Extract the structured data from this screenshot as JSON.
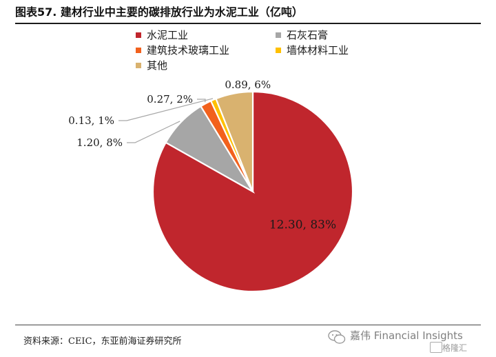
{
  "header": {
    "title": "图表57.  建材行业中主要的碳排放行业为水泥工业（亿吨）"
  },
  "chart_data": {
    "type": "pie",
    "categories": [
      "水泥工业",
      "石灰石膏",
      "建筑技术玻璃工业",
      "墙体材料工业",
      "其他"
    ],
    "values": [
      12.3,
      1.2,
      0.27,
      0.13,
      0.89
    ],
    "percent": [
      83,
      8,
      2,
      1,
      6
    ],
    "data_labels": [
      "12.30, 83%",
      "1.20, 8%",
      "0.27, 2%",
      "0.13, 1%",
      "0.89, 6%"
    ],
    "colors": [
      "#c0262d",
      "#a6a6a6",
      "#f2611d",
      "#ffc000",
      "#d9b26f"
    ],
    "legend_position": "top-left"
  },
  "footer": {
    "source": "资料来源：CEIC，东亚前海证券研究所"
  },
  "watermark": {
    "text": "嘉伟 Financial Insights",
    "sub": "格隆汇"
  }
}
